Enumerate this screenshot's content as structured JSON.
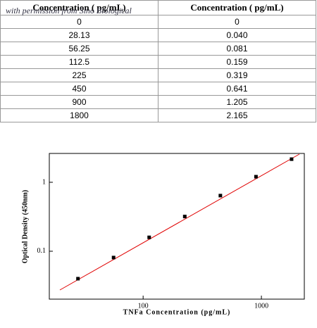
{
  "watermark": "with permission from Sino Biological",
  "table": {
    "header": [
      "Concentration ( pg/mL)",
      "Concentration ( pg/mL)"
    ],
    "rows": [
      [
        "0",
        "0"
      ],
      [
        "28.13",
        "0.040"
      ],
      [
        "56.25",
        "0.081"
      ],
      [
        "112.5",
        "0.159"
      ],
      [
        "225",
        "0.319"
      ],
      [
        "450",
        "0.641"
      ],
      [
        "900",
        "1.205"
      ],
      [
        "1800",
        "2.165"
      ]
    ]
  },
  "chart_data": {
    "type": "scatter",
    "x": [
      28.13,
      56.25,
      112.5,
      225,
      450,
      900,
      1800
    ],
    "values": [
      0.04,
      0.081,
      0.159,
      0.319,
      0.641,
      1.205,
      2.165
    ],
    "color": "#000000",
    "xlabel": "TNFa Concentration (pg/mL)",
    "ylabel": "Optical Density (450nm)",
    "xlim": [
      16.1,
      2306
    ],
    "ylim": [
      0.0202,
      2.62
    ],
    "xticks": [
      100,
      1000
    ],
    "yticks": [
      0.1,
      1
    ],
    "xlog": true,
    "ylog": true
  }
}
